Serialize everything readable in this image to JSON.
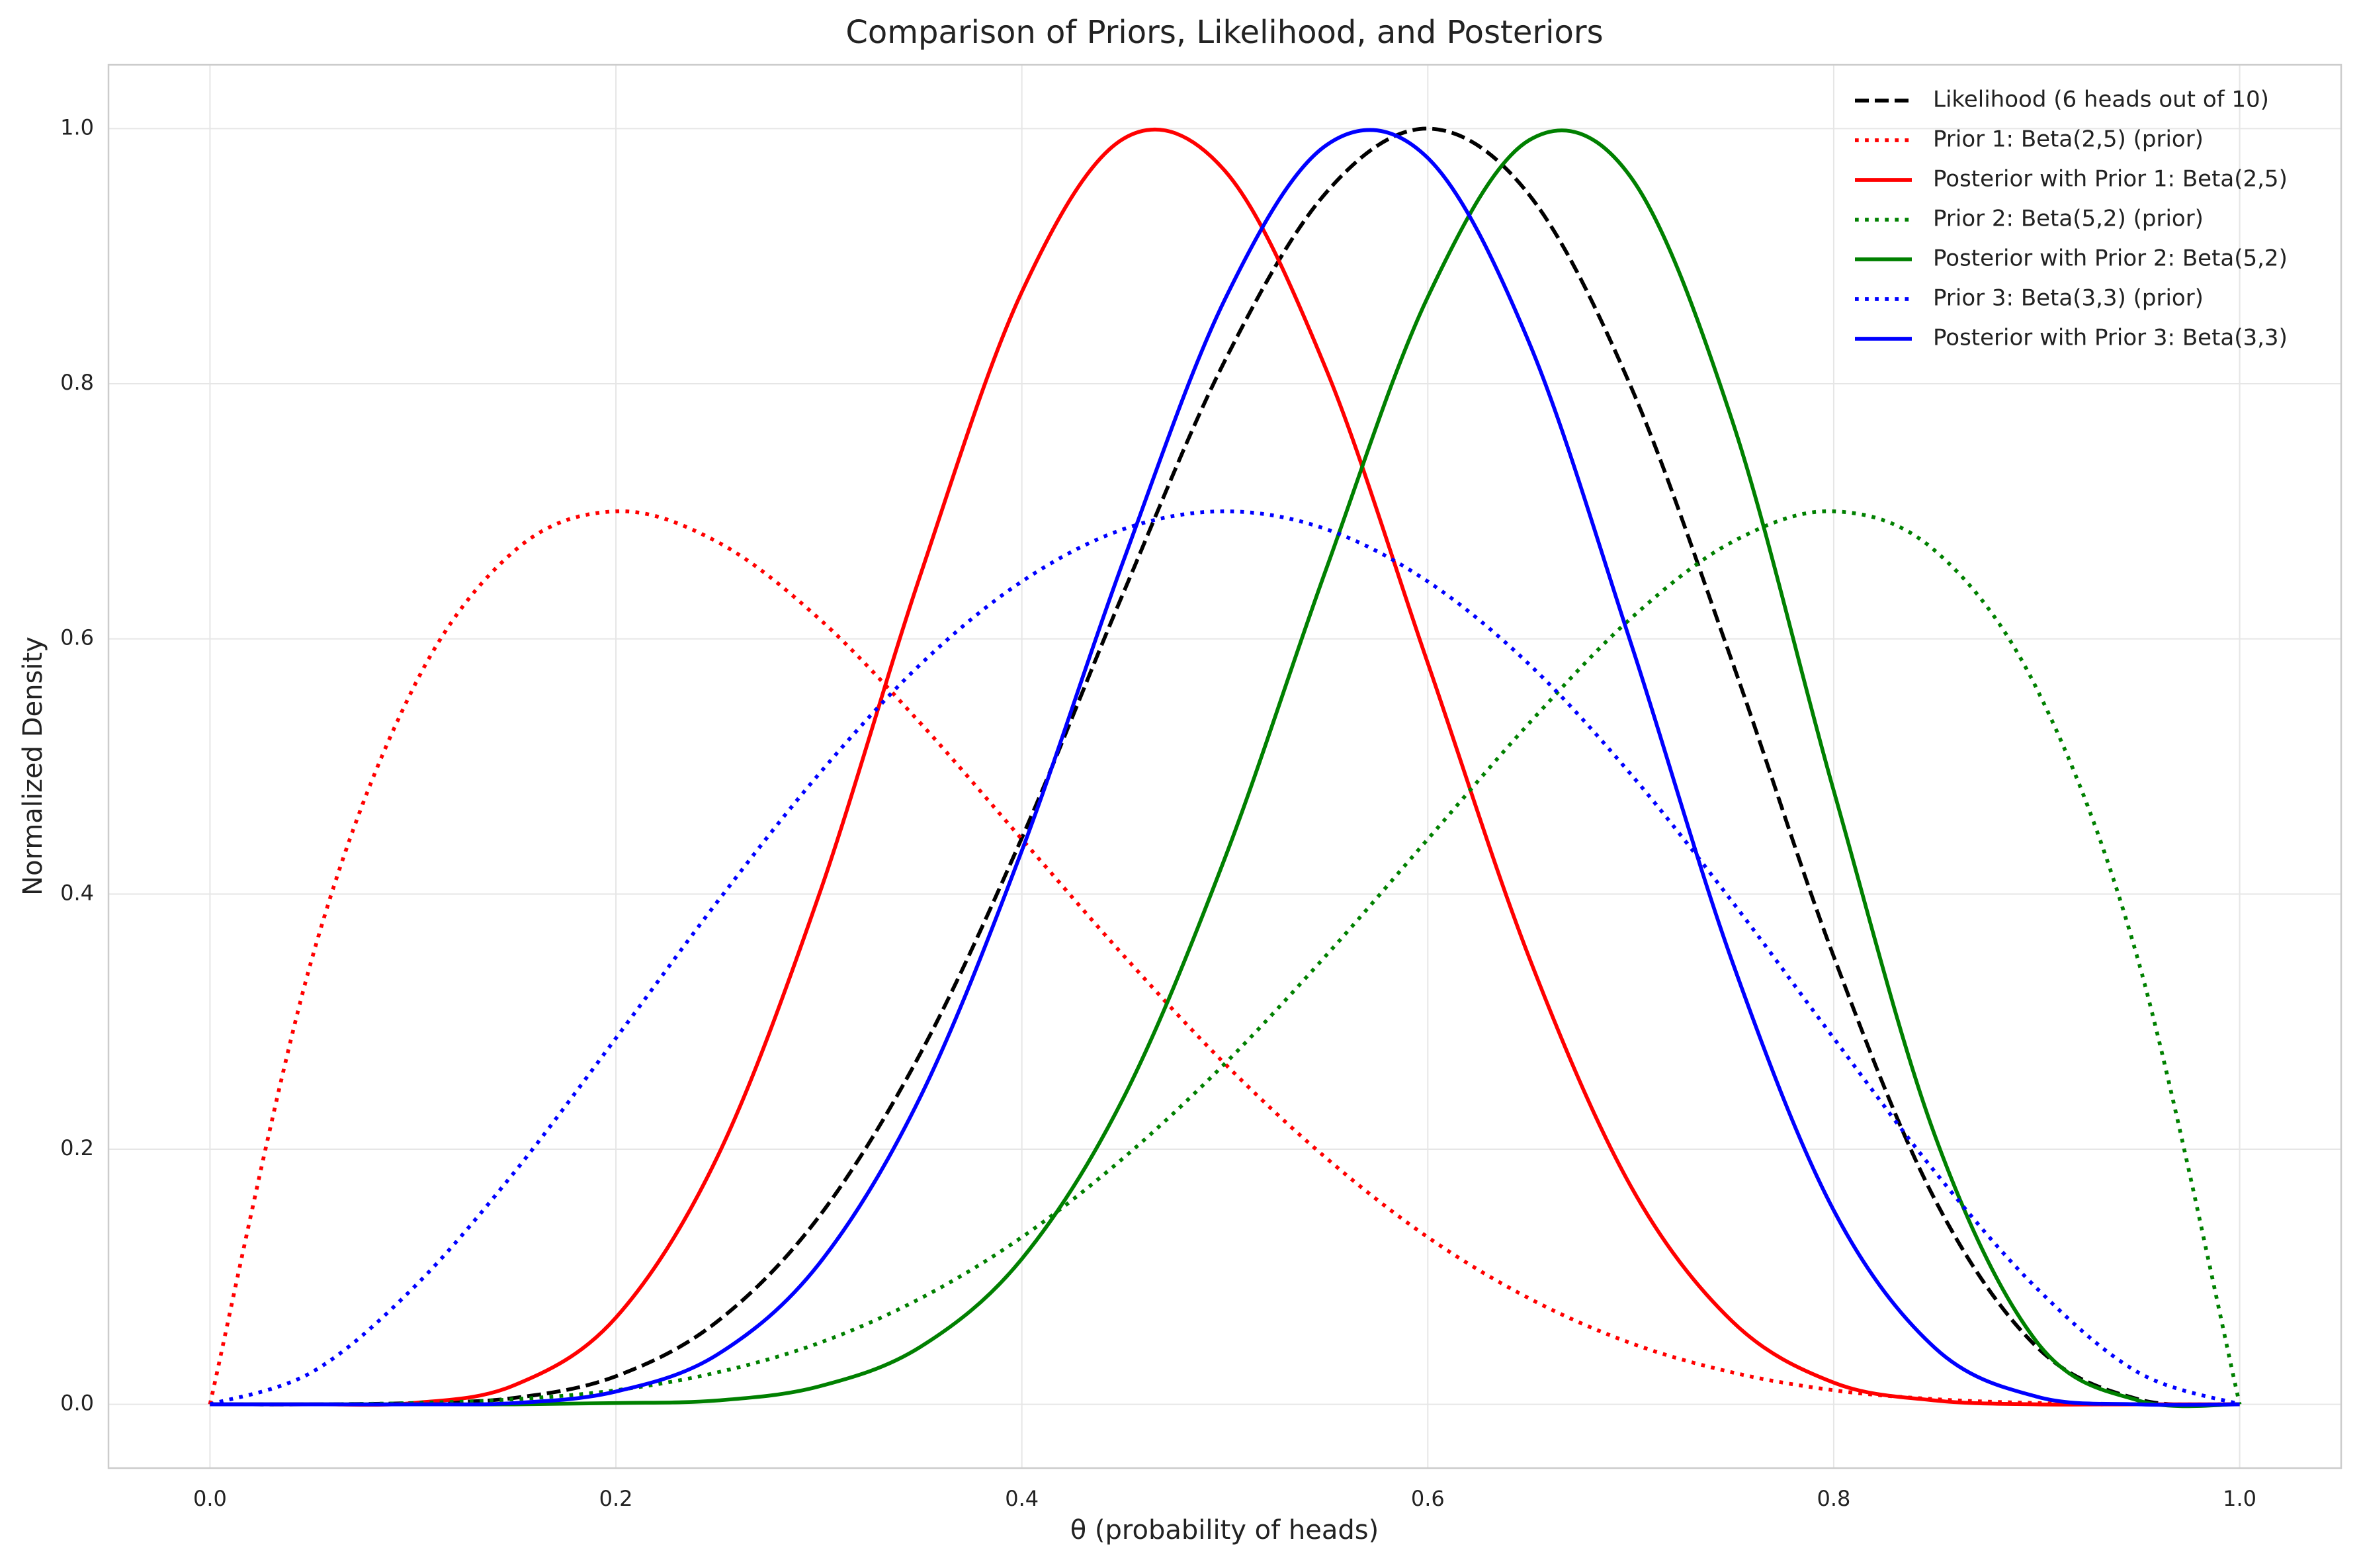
{
  "chart_data": {
    "type": "line",
    "title": "Comparison of Priors, Likelihood, and Posteriors",
    "x_label": "θ (probability of heads)",
    "y_label": "Normalized Density",
    "x": [
      0,
      0.05,
      0.1,
      0.15,
      0.2,
      0.25,
      0.3,
      0.35,
      0.4,
      0.45,
      0.5,
      0.55,
      0.6,
      0.65,
      0.7,
      0.75,
      0.8,
      0.85,
      0.9,
      0.95,
      1
    ],
    "series": [
      {
        "name": "Likelihood (6 heads out of 10)",
        "color": "#000000",
        "style": "dashed",
        "values": [
          0,
          0,
          0.001,
          0.005,
          0.022,
          0.065,
          0.147,
          0.275,
          0.444,
          0.636,
          0.818,
          0.95,
          1,
          0.948,
          0.798,
          0.582,
          0.351,
          0.16,
          0.045,
          0.004,
          0
        ]
      },
      {
        "name": "Prior 1: Beta(2,5) (prior)",
        "color": "#ff0000",
        "style": "dotted",
        "values": [
          0,
          0.348,
          0.561,
          0.669,
          0.7,
          0.676,
          0.616,
          0.534,
          0.443,
          0.352,
          0.267,
          0.193,
          0.131,
          0.083,
          0.048,
          0.025,
          0.011,
          0.004,
          0.001,
          0,
          0
        ]
      },
      {
        "name": "Posterior with Prior 1: Beta(2,5)",
        "color": "#ff0000",
        "style": "solid",
        "values": [
          0,
          0,
          0.001,
          0.015,
          0.068,
          0.194,
          0.399,
          0.65,
          0.872,
          0.992,
          0.967,
          0.811,
          0.581,
          0.35,
          0.171,
          0.065,
          0.017,
          0.003,
          0,
          0,
          0
        ]
      },
      {
        "name": "Prior 2: Beta(5,2) (prior)",
        "color": "#008000",
        "style": "dotted",
        "values": [
          0,
          0,
          0.001,
          0.004,
          0.011,
          0.025,
          0.048,
          0.083,
          0.131,
          0.193,
          0.267,
          0.352,
          0.443,
          0.534,
          0.616,
          0.676,
          0.7,
          0.669,
          0.561,
          0.348,
          0
        ]
      },
      {
        "name": "Posterior with Prior 2: Beta(5,2)",
        "color": "#008000",
        "style": "solid",
        "values": [
          0,
          0,
          0,
          0,
          0.001,
          0.003,
          0.014,
          0.045,
          0.114,
          0.24,
          0.428,
          0.655,
          0.868,
          0.991,
          0.962,
          0.771,
          0.481,
          0.21,
          0.049,
          0.003,
          0
        ]
      },
      {
        "name": "Prior 3: Beta(3,3) (prior)",
        "color": "#0000ff",
        "style": "dotted",
        "values": [
          0,
          0.025,
          0.091,
          0.182,
          0.287,
          0.394,
          0.494,
          0.58,
          0.645,
          0.686,
          0.7,
          0.686,
          0.645,
          0.58,
          0.494,
          0.394,
          0.287,
          0.182,
          0.091,
          0.025,
          0
        ]
      },
      {
        "name": "Posterior with Prior 3: Beta(3,3)",
        "color": "#0000ff",
        "style": "solid",
        "values": [
          0,
          0,
          0,
          0.001,
          0.01,
          0.039,
          0.11,
          0.241,
          0.434,
          0.661,
          0.866,
          0.987,
          0.977,
          0.832,
          0.597,
          0.347,
          0.152,
          0.044,
          0.006,
          0,
          0
        ]
      }
    ],
    "xlim": [
      -0.05,
      1.05
    ],
    "ylim": [
      -0.05,
      1.05
    ],
    "xticks": [
      {
        "value": 0,
        "label": "0.0"
      },
      {
        "value": 0.2,
        "label": "0.2"
      },
      {
        "value": 0.4,
        "label": "0.4"
      },
      {
        "value": 0.6,
        "label": "0.6"
      },
      {
        "value": 0.8,
        "label": "0.8"
      },
      {
        "value": 1,
        "label": "1.0"
      }
    ],
    "yticks": [
      {
        "value": 0,
        "label": "0.0"
      },
      {
        "value": 0.2,
        "label": "0.2"
      },
      {
        "value": 0.4,
        "label": "0.4"
      },
      {
        "value": 0.6,
        "label": "0.6"
      },
      {
        "value": 0.8,
        "label": "0.8"
      },
      {
        "value": 1,
        "label": "1.0"
      }
    ],
    "grid": true,
    "legend": "upper right"
  }
}
